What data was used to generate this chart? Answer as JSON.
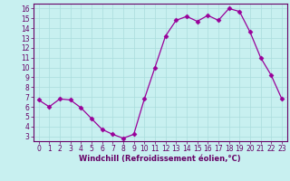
{
  "x": [
    0,
    1,
    2,
    3,
    4,
    5,
    6,
    7,
    8,
    9,
    10,
    11,
    12,
    13,
    14,
    15,
    16,
    17,
    18,
    19,
    20,
    21,
    22,
    23
  ],
  "y": [
    6.7,
    6.0,
    6.8,
    6.7,
    5.9,
    4.8,
    3.7,
    3.2,
    2.8,
    3.2,
    6.8,
    10.0,
    13.2,
    14.8,
    15.2,
    14.7,
    15.3,
    14.8,
    16.0,
    15.7,
    13.6,
    11.0,
    9.2,
    6.8
  ],
  "line_color": "#990099",
  "marker": "D",
  "markersize": 2.5,
  "linewidth": 0.9,
  "bg_color": "#c8f0f0",
  "grid_color": "#aadddd",
  "xlabel": "Windchill (Refroidissement éolien,°C)",
  "xlim": [
    -0.5,
    23.5
  ],
  "ylim": [
    2.5,
    16.5
  ],
  "yticks": [
    3,
    4,
    5,
    6,
    7,
    8,
    9,
    10,
    11,
    12,
    13,
    14,
    15,
    16
  ],
  "xticks": [
    0,
    1,
    2,
    3,
    4,
    5,
    6,
    7,
    8,
    9,
    10,
    11,
    12,
    13,
    14,
    15,
    16,
    17,
    18,
    19,
    20,
    21,
    22,
    23
  ],
  "title_color": "#660066",
  "axis_color": "#660066",
  "tick_color": "#660066",
  "label_fontsize": 6.0,
  "tick_fontsize": 5.5
}
